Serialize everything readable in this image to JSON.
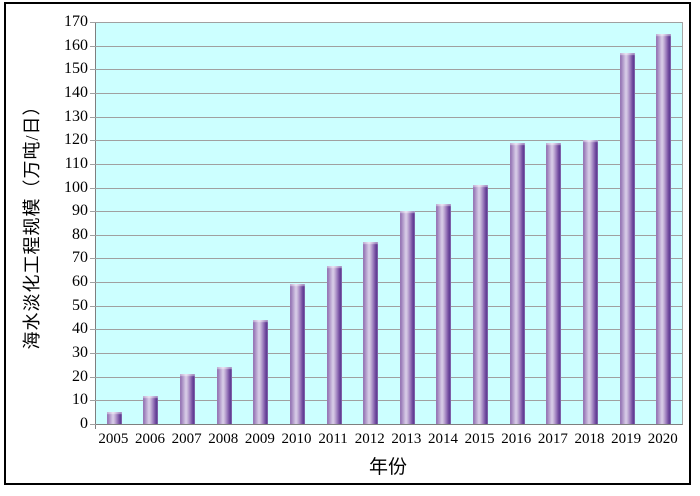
{
  "chart_data": {
    "type": "bar",
    "title": "",
    "categories": [
      "2005",
      "2006",
      "2007",
      "2008",
      "2009",
      "2010",
      "2011",
      "2012",
      "2013",
      "2014",
      "2015",
      "2016",
      "2017",
      "2018",
      "2019",
      "2020"
    ],
    "values": [
      5,
      12,
      21,
      24,
      44,
      59,
      67,
      77,
      90,
      93,
      101,
      119,
      119,
      120,
      157,
      165
    ],
    "xlabel": "年份",
    "ylabel": "海水淡化工程规模（万吨/日）",
    "ylim": [
      0,
      170
    ],
    "ytick_step": 10,
    "grid": "horizontal-only",
    "legend_position": "none",
    "colors": {
      "plot_background": "#CCFFFF",
      "bar_base": "#8064A2",
      "bar_edge_dark": "#5B3A92",
      "bar_highlight": "#D9CFE8",
      "gridline": "#A0A0A0",
      "axis_line": "#7F7F7F",
      "frame_border": "#000000",
      "text": "#000000"
    }
  }
}
